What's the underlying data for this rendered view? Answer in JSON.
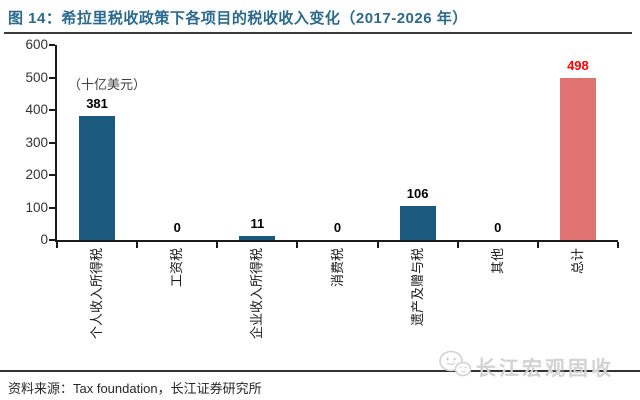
{
  "header": {
    "title": "图 14：希拉里税收政策下各项目的税收收入变化（2017-2026 年）"
  },
  "chart_data": {
    "type": "bar",
    "title": "希拉里税收政策下各项目的税收收入变化（2017-2026 年）",
    "unit_label": "（十亿美元）",
    "categories": [
      "个人收入所得税",
      "工资税",
      "企业收入所得税",
      "消费税",
      "遗产及赠与税",
      "其他",
      "总计"
    ],
    "values": [
      381,
      0,
      11,
      0,
      106,
      0,
      498
    ],
    "xlabel": "",
    "ylabel": "（十亿美元）",
    "ylim": [
      0,
      600
    ],
    "yticks": [
      0,
      100,
      200,
      300,
      400,
      500,
      600
    ],
    "grid": false,
    "legend": "none",
    "bar_color_default": "#1B5A7E",
    "total_index": 6,
    "total_bar_color": "#E07272",
    "total_value_label_color": "#FF0000",
    "value_label_color": "#000000"
  },
  "footer": {
    "source": "资料来源：Tax foundation，长江证券研究所"
  },
  "watermark": {
    "text": "长江宏观固收",
    "icon": "wechat-chat-bubbles-icon"
  },
  "colors": {
    "title": "#2A6A8E",
    "axis": "#1A1A1A",
    "watermark": "#D2D2D2"
  }
}
